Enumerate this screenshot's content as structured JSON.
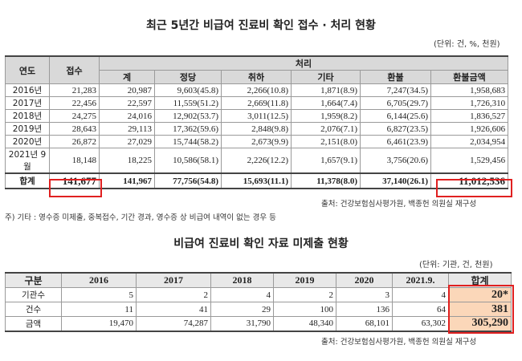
{
  "table1": {
    "title": "최근 5년간 비급여 진료비 확인 접수 · 처리 현황",
    "unit": "(단위: 건, %, 천원)",
    "headers": {
      "year": "연도",
      "receipt": "접수",
      "processing": "처리",
      "sub": [
        "계",
        "정당",
        "취하",
        "기타",
        "환불",
        "환불금액"
      ]
    },
    "rows": [
      {
        "year": "2016년",
        "cells": [
          "21,283",
          "20,987",
          "9,603(45.8)",
          "2,266(10.8)",
          "1,871(8.9)",
          "7,247(34.5)",
          "1,958,683"
        ]
      },
      {
        "year": "2017년",
        "cells": [
          "22,456",
          "22,597",
          "11,559(51.2)",
          "2,669(11.8)",
          "1,664(7.4)",
          "6,705(29.7)",
          "1,726,310"
        ]
      },
      {
        "year": "2018년",
        "cells": [
          "24,275",
          "24,016",
          "12,902(53.7)",
          "3,011(12.5)",
          "1,959(8.2)",
          "6,144(25.6)",
          "1,836,527"
        ]
      },
      {
        "year": "2019년",
        "cells": [
          "28,643",
          "29,113",
          "17,362(59.6)",
          "2,848(9.8)",
          "2,076(7.1)",
          "6,827(23.5)",
          "1,926,606"
        ]
      },
      {
        "year": "2020년",
        "cells": [
          "26,872",
          "27,029",
          "15,744(58.2)",
          "2,673(9.9)",
          "2,151(8.0)",
          "6,461(23.9)",
          "2,034,954"
        ]
      },
      {
        "year": "2021년 9월",
        "cells": [
          "18,148",
          "18,225",
          "10,586(58.1)",
          "2,226(12.2)",
          "1,657(9.1)",
          "3,756(20.6)",
          "1,529,456"
        ]
      }
    ],
    "total": {
      "label": "합계",
      "cells": [
        "141,677",
        "141,967",
        "77,756(54.8)",
        "15,693(11.1)",
        "11,378(8.0)",
        "37,140(26.1)",
        "11,012,536"
      ]
    },
    "source": "출처: 건강보험심사평가원, 백종헌 의원실 재구성",
    "note": "주) 기타 : 영수증 미제출, 중복접수, 기간 경과, 영수증 상 비급여 내역이 없는 경우 등",
    "highlight_color": "#e02020"
  },
  "table2": {
    "title": "비급여 진료비 확인 자료 미제출 현황",
    "unit": "(단위: 기관, 건, 천원)",
    "headers": [
      "구분",
      "2016",
      "2017",
      "2018",
      "2019",
      "2020",
      "2021.9.",
      "합계"
    ],
    "rows": [
      {
        "label": "기관수",
        "cells": [
          "5",
          "2",
          "4",
          "2",
          "3",
          "4"
        ],
        "total": "20*"
      },
      {
        "label": "건수",
        "cells": [
          "11",
          "41",
          "29",
          "100",
          "136",
          "64"
        ],
        "total": "381"
      },
      {
        "label": "금액",
        "cells": [
          "19,470",
          "74,287",
          "31,790",
          "48,340",
          "68,101",
          "63,302"
        ],
        "total": "305,290"
      }
    ],
    "source": "출처: 건강보험심사평가원, 백종헌 의원실 재구성",
    "total_fill": "#fbd7b9"
  }
}
